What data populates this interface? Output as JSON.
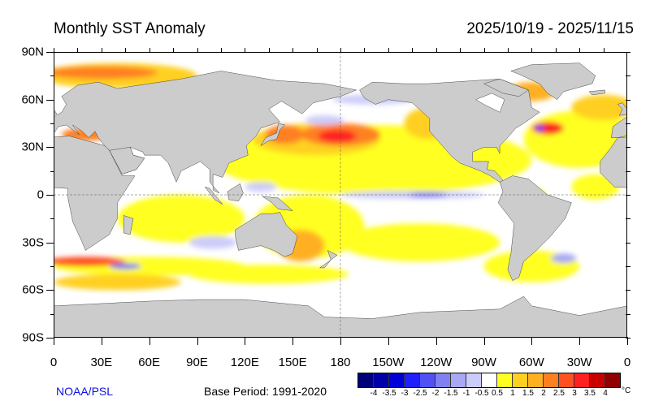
{
  "title": "Monthly SST Anomaly",
  "date_range": "2025/10/19 - 2025/11/15",
  "credit": "NOAA/PSL",
  "base_period": "Base Period: 1991-2020",
  "lat_labels": [
    "90N",
    "60N",
    "30N",
    "0",
    "30S",
    "60S",
    "90S"
  ],
  "lon_labels": [
    "0",
    "30E",
    "60E",
    "90E",
    "120E",
    "150E",
    "180",
    "150W",
    "120W",
    "90W",
    "60W",
    "30W",
    "0"
  ],
  "colorbar": {
    "unit": "°C",
    "labels": [
      "-4",
      "-3.5",
      "-3",
      "-2.5",
      "-2",
      "-1.5",
      "-1",
      "-0.5",
      "0.5",
      "1",
      "1.5",
      "2",
      "2.5",
      "3",
      "3.5",
      "4"
    ],
    "colors": [
      "#00007a",
      "#0000a8",
      "#0000d8",
      "#2020ff",
      "#5050f5",
      "#8080f0",
      "#a8a8f5",
      "#ccccfa",
      "#ffffff",
      "#ffff20",
      "#ffd020",
      "#ffb020",
      "#ff8020",
      "#ff5020",
      "#ff2020",
      "#c80000",
      "#900000"
    ]
  },
  "map": {
    "land_color": "#cccccc",
    "ocean_color": "#ffffff"
  }
}
